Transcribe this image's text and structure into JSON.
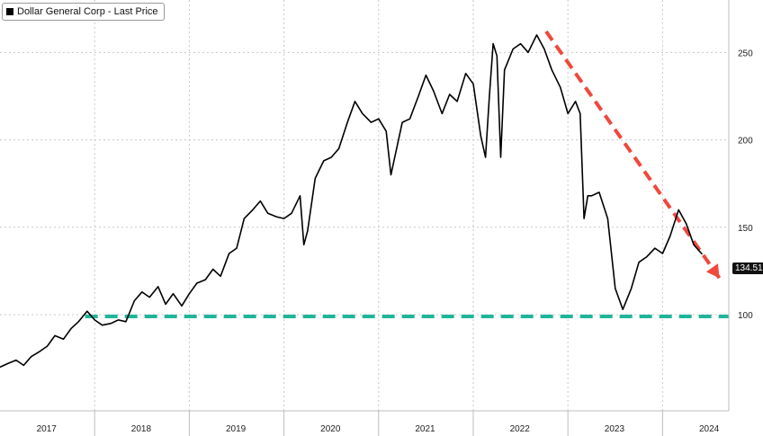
{
  "chart_data": {
    "type": "line",
    "legend": "Dollar General Corp - Last Price",
    "last_price_label": "134.51",
    "x_tick_labels": [
      "2017",
      "2018",
      "2019",
      "2020",
      "2021",
      "2022",
      "2023",
      "2024"
    ],
    "y_tick_labels": [
      "100",
      "150",
      "200",
      "250"
    ],
    "ylim": [
      45,
      280
    ],
    "xlim": [
      2017.0,
      2024.7
    ],
    "grid": true,
    "series": [
      {
        "values": [
          [
            2017.0,
            70
          ],
          [
            2017.08,
            72
          ],
          [
            2017.17,
            74
          ],
          [
            2017.25,
            71
          ],
          [
            2017.33,
            76
          ],
          [
            2017.42,
            79
          ],
          [
            2017.5,
            82
          ],
          [
            2017.58,
            88
          ],
          [
            2017.67,
            86
          ],
          [
            2017.75,
            92
          ],
          [
            2017.83,
            96
          ],
          [
            2017.92,
            102
          ],
          [
            2018.0,
            97
          ],
          [
            2018.08,
            94
          ],
          [
            2018.17,
            95
          ],
          [
            2018.25,
            97
          ],
          [
            2018.33,
            96
          ],
          [
            2018.42,
            108
          ],
          [
            2018.5,
            113
          ],
          [
            2018.58,
            110
          ],
          [
            2018.67,
            116
          ],
          [
            2018.75,
            106
          ],
          [
            2018.83,
            112
          ],
          [
            2018.92,
            105
          ],
          [
            2019.0,
            112
          ],
          [
            2019.08,
            118
          ],
          [
            2019.17,
            120
          ],
          [
            2019.25,
            126
          ],
          [
            2019.33,
            122
          ],
          [
            2019.42,
            135
          ],
          [
            2019.5,
            138
          ],
          [
            2019.58,
            155
          ],
          [
            2019.67,
            160
          ],
          [
            2019.75,
            165
          ],
          [
            2019.83,
            158
          ],
          [
            2019.92,
            156
          ],
          [
            2020.0,
            155
          ],
          [
            2020.08,
            158
          ],
          [
            2020.17,
            168
          ],
          [
            2020.21,
            140
          ],
          [
            2020.25,
            148
          ],
          [
            2020.33,
            178
          ],
          [
            2020.42,
            188
          ],
          [
            2020.5,
            190
          ],
          [
            2020.58,
            195
          ],
          [
            2020.67,
            210
          ],
          [
            2020.75,
            222
          ],
          [
            2020.83,
            215
          ],
          [
            2020.92,
            210
          ],
          [
            2021.0,
            212
          ],
          [
            2021.08,
            205
          ],
          [
            2021.13,
            180
          ],
          [
            2021.17,
            190
          ],
          [
            2021.25,
            210
          ],
          [
            2021.33,
            212
          ],
          [
            2021.42,
            225
          ],
          [
            2021.5,
            237
          ],
          [
            2021.58,
            228
          ],
          [
            2021.67,
            215
          ],
          [
            2021.75,
            226
          ],
          [
            2021.83,
            222
          ],
          [
            2021.92,
            238
          ],
          [
            2022.0,
            232
          ],
          [
            2022.08,
            202
          ],
          [
            2022.13,
            190
          ],
          [
            2022.17,
            225
          ],
          [
            2022.21,
            255
          ],
          [
            2022.25,
            248
          ],
          [
            2022.29,
            190
          ],
          [
            2022.33,
            240
          ],
          [
            2022.42,
            252
          ],
          [
            2022.5,
            255
          ],
          [
            2022.58,
            250
          ],
          [
            2022.67,
            260
          ],
          [
            2022.75,
            252
          ],
          [
            2022.83,
            240
          ],
          [
            2022.92,
            230
          ],
          [
            2023.0,
            215
          ],
          [
            2023.08,
            222
          ],
          [
            2023.13,
            215
          ],
          [
            2023.17,
            155
          ],
          [
            2023.21,
            168
          ],
          [
            2023.25,
            168
          ],
          [
            2023.33,
            170
          ],
          [
            2023.42,
            155
          ],
          [
            2023.5,
            115
          ],
          [
            2023.58,
            103
          ],
          [
            2023.67,
            115
          ],
          [
            2023.75,
            130
          ],
          [
            2023.83,
            133
          ],
          [
            2023.92,
            138
          ],
          [
            2024.0,
            135
          ],
          [
            2024.08,
            145
          ],
          [
            2024.17,
            160
          ],
          [
            2024.25,
            152
          ],
          [
            2024.33,
            140
          ],
          [
            2024.42,
            134.51
          ]
        ]
      }
    ],
    "annotations": [
      {
        "kind": "trend-arrow",
        "color": "#f0483c",
        "from": [
          2022.77,
          262
        ],
        "to": [
          2024.6,
          121
        ]
      },
      {
        "kind": "support-line",
        "color": "#1fb59a",
        "y": 99,
        "x_from": 2017.9,
        "x_to": 2024.7
      }
    ]
  }
}
